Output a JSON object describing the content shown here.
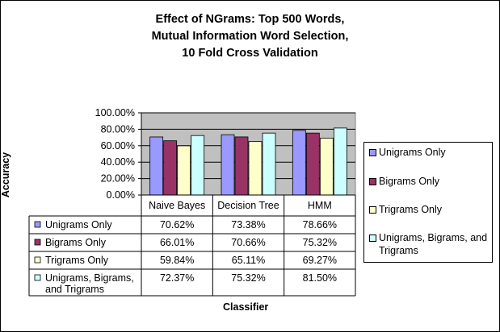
{
  "chart_data": {
    "type": "bar",
    "title_lines": [
      "Effect of NGrams: Top 500 Words,",
      "Mutual Information Word Selection,",
      "10 Fold Cross Validation"
    ],
    "xlabel": "Classifier",
    "ylabel": "Accuracy",
    "categories": [
      "Naive Bayes",
      "Decision Tree",
      "HMM"
    ],
    "ylim": [
      0,
      100
    ],
    "yticks": [
      "0.00%",
      "20.00%",
      "40.00%",
      "60.00%",
      "80.00%",
      "100.00%"
    ],
    "series": [
      {
        "name": "Unigrams Only",
        "values": [
          70.62,
          73.38,
          78.66
        ],
        "labels": [
          "70.62%",
          "73.38%",
          "78.66%"
        ],
        "color": "#9999ff"
      },
      {
        "name": "Bigrams Only",
        "values": [
          66.01,
          70.66,
          75.32
        ],
        "labels": [
          "66.01%",
          "70.66%",
          "75.32%"
        ],
        "color": "#993366"
      },
      {
        "name": "Trigrams Only",
        "values": [
          59.84,
          65.11,
          69.27
        ],
        "labels": [
          "59.84%",
          "65.11%",
          "69.27%"
        ],
        "color": "#ffffcc"
      },
      {
        "name": "Unigrams, Bigrams, and Trigrams",
        "values": [
          72.37,
          75.32,
          81.5
        ],
        "labels": [
          "72.37%",
          "75.32%",
          "81.50%"
        ],
        "color": "#ccffff"
      }
    ],
    "grid": true,
    "legend_position": "right",
    "table_row_names": [
      "Unigrams Only",
      "Bigrams Only",
      "Trigrams Only",
      "Unigrams, Bigrams, and Trigrams"
    ],
    "plot_background": "#c0c0c0"
  }
}
